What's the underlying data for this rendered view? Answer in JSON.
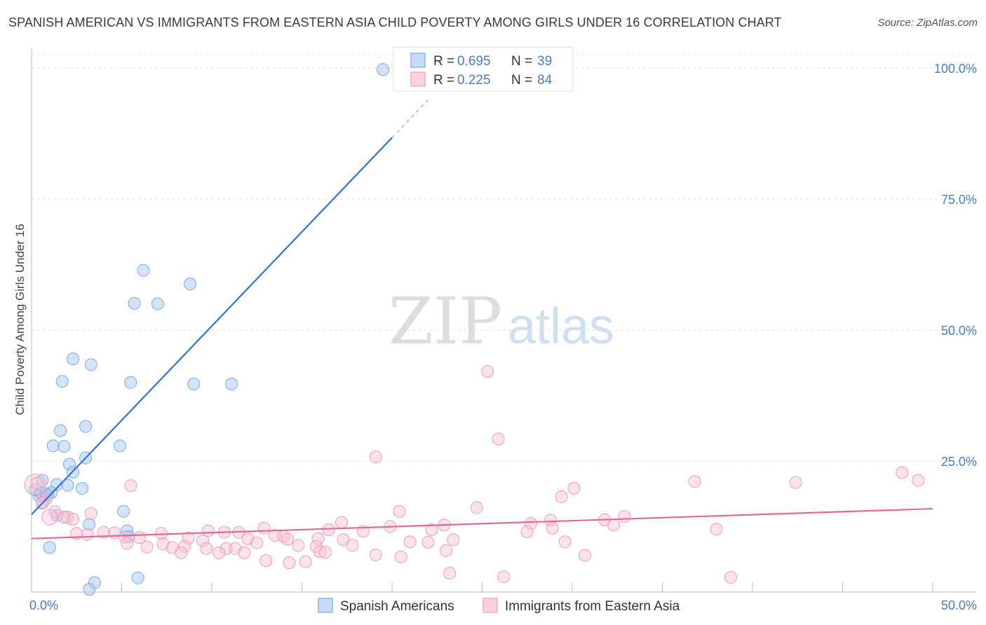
{
  "title": "SPANISH AMERICAN VS IMMIGRANTS FROM EASTERN ASIA CHILD POVERTY AMONG GIRLS UNDER 16 CORRELATION CHART",
  "source": "Source: ZipAtlas.com",
  "watermark": {
    "zip": "ZIP",
    "atlas": "atlas"
  },
  "chart_data": {
    "type": "scatter",
    "ylabel": "Child Poverty Among Girls Under 16",
    "xlim": [
      0,
      50
    ],
    "ylim": [
      0,
      100
    ],
    "x_tick_labels": [
      {
        "value": 0,
        "label": "0.0%"
      },
      {
        "value": 50,
        "label": "50.0%"
      }
    ],
    "y_tick_labels": [
      {
        "value": 25,
        "label": "25.0%"
      },
      {
        "value": 50,
        "label": "50.0%"
      },
      {
        "value": 75,
        "label": "75.0%"
      },
      {
        "value": 100,
        "label": "100.0%"
      }
    ],
    "legend": [
      {
        "name": "Spanish Americans",
        "r_label": "R =",
        "r": "0.695",
        "n_label": "N =",
        "n": "39",
        "color": "#7aaae8"
      },
      {
        "name": "Immigrants from Eastern Asia",
        "r_label": "R =",
        "r": "0.225",
        "n_label": "N =",
        "n": "84",
        "color": "#f09ab8"
      }
    ],
    "series": [
      {
        "name": "Spanish Americans",
        "color": "#7aaae8",
        "trend": {
          "x": [
            0,
            20
          ],
          "y": [
            14.8,
            86.7
          ],
          "dashed_to": [
            22,
            93.9
          ],
          "color": "#2f72d0"
        },
        "points": [
          [
            19.5,
            99.7
          ],
          [
            6.2,
            61.4
          ],
          [
            8.8,
            58.8
          ],
          [
            5.7,
            55.1
          ],
          [
            7.0,
            55.0
          ],
          [
            2.3,
            44.5
          ],
          [
            3.3,
            43.4
          ],
          [
            1.7,
            40.2
          ],
          [
            5.5,
            40.0
          ],
          [
            9.0,
            39.7
          ],
          [
            11.1,
            39.7
          ],
          [
            3.0,
            31.6
          ],
          [
            1.6,
            30.8
          ],
          [
            1.2,
            27.9
          ],
          [
            1.8,
            27.8
          ],
          [
            4.9,
            27.9
          ],
          [
            3.0,
            25.6
          ],
          [
            2.1,
            24.4
          ],
          [
            2.3,
            22.9
          ],
          [
            1.4,
            20.5
          ],
          [
            2.0,
            20.4
          ],
          [
            0.6,
            21.3
          ],
          [
            2.8,
            19.8
          ],
          [
            1.1,
            19.0
          ],
          [
            0.8,
            18.8
          ],
          [
            0.5,
            18.9
          ],
          [
            0.4,
            18.4
          ],
          [
            0.6,
            17.0
          ],
          [
            1.4,
            14.6
          ],
          [
            5.1,
            15.4
          ],
          [
            3.2,
            12.9
          ],
          [
            5.3,
            11.7
          ],
          [
            5.4,
            10.6
          ],
          [
            1.0,
            8.5
          ],
          [
            3.5,
            1.8
          ],
          [
            5.9,
            2.7
          ],
          [
            3.2,
            0.5
          ],
          [
            0.2,
            19.5
          ],
          [
            0.9,
            18.5
          ]
        ]
      },
      {
        "name": "Immigrants from Eastern Asia",
        "color": "#f09ab8",
        "trend": {
          "x": [
            0,
            50
          ],
          "y": [
            10.2,
            15.9
          ],
          "color": "#e2689a"
        },
        "points": [
          [
            25.3,
            42.1
          ],
          [
            25.9,
            29.2
          ],
          [
            19.1,
            25.8
          ],
          [
            48.3,
            22.8
          ],
          [
            49.2,
            21.3
          ],
          [
            36.8,
            21.1
          ],
          [
            42.4,
            20.9
          ],
          [
            0.3,
            20.8
          ],
          [
            5.5,
            20.3
          ],
          [
            30.1,
            19.8
          ],
          [
            29.4,
            18.2
          ],
          [
            0.8,
            17.8
          ],
          [
            1.3,
            15.3
          ],
          [
            0.6,
            17.1
          ],
          [
            20.4,
            15.4
          ],
          [
            24.7,
            16.1
          ],
          [
            32.9,
            14.4
          ],
          [
            31.8,
            13.8
          ],
          [
            2.0,
            14.3
          ],
          [
            3.3,
            15.0
          ],
          [
            2.3,
            13.9
          ],
          [
            1.8,
            14.3
          ],
          [
            17.2,
            13.3
          ],
          [
            27.7,
            13.1
          ],
          [
            28.8,
            13.7
          ],
          [
            32.3,
            12.8
          ],
          [
            22.9,
            12.8
          ],
          [
            12.9,
            12.2
          ],
          [
            19.9,
            12.5
          ],
          [
            28.9,
            12.2
          ],
          [
            16.5,
            11.9
          ],
          [
            9.8,
            11.7
          ],
          [
            10.7,
            11.4
          ],
          [
            11.5,
            11.4
          ],
          [
            22.2,
            11.9
          ],
          [
            18.4,
            11.6
          ],
          [
            4.0,
            11.4
          ],
          [
            7.2,
            11.2
          ],
          [
            4.6,
            11.3
          ],
          [
            3.1,
            11.0
          ],
          [
            2.5,
            11.2
          ],
          [
            38.0,
            12.0
          ],
          [
            27.5,
            11.5
          ],
          [
            5.2,
            10.5
          ],
          [
            6.0,
            10.4
          ],
          [
            8.7,
            10.3
          ],
          [
            12.0,
            10.2
          ],
          [
            13.5,
            10.8
          ],
          [
            14.0,
            10.6
          ],
          [
            14.2,
            10.1
          ],
          [
            15.9,
            10.2
          ],
          [
            9.5,
            9.8
          ],
          [
            17.3,
            10.0
          ],
          [
            23.4,
            10.0
          ],
          [
            21.0,
            9.6
          ],
          [
            29.6,
            9.6
          ],
          [
            22.0,
            9.5
          ],
          [
            5.3,
            9.3
          ],
          [
            12.5,
            9.4
          ],
          [
            7.3,
            9.2
          ],
          [
            14.8,
            8.9
          ],
          [
            17.8,
            8.9
          ],
          [
            15.8,
            8.7
          ],
          [
            8.5,
            8.7
          ],
          [
            6.4,
            8.6
          ],
          [
            7.8,
            8.5
          ],
          [
            9.7,
            8.3
          ],
          [
            10.8,
            8.3
          ],
          [
            11.3,
            8.3
          ],
          [
            16.0,
            7.7
          ],
          [
            16.3,
            7.6
          ],
          [
            8.3,
            7.5
          ],
          [
            10.4,
            7.5
          ],
          [
            11.8,
            7.5
          ],
          [
            23.0,
            7.9
          ],
          [
            19.1,
            7.1
          ],
          [
            20.5,
            6.7
          ],
          [
            30.7,
            7.0
          ],
          [
            13.0,
            6.0
          ],
          [
            15.2,
            5.8
          ],
          [
            14.3,
            5.6
          ],
          [
            23.2,
            3.6
          ],
          [
            26.2,
            2.9
          ],
          [
            38.8,
            2.8
          ]
        ]
      }
    ]
  }
}
